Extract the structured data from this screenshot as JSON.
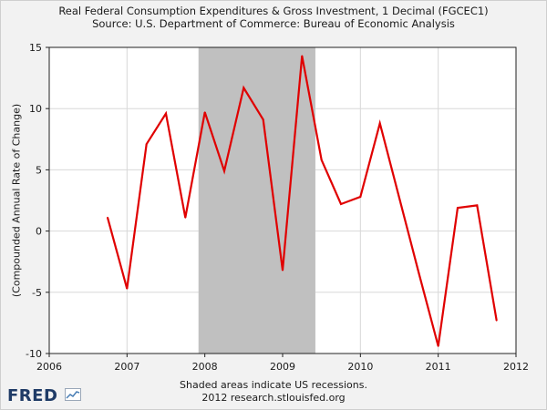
{
  "header": {
    "title": "Real Federal Consumption Expenditures & Gross Investment, 1 Decimal (FGCEC1)",
    "source": "Source: U.S. Department of Commerce: Bureau of Economic Analysis"
  },
  "footer": {
    "note": "Shaded areas indicate US recessions.",
    "credit": "2012 research.stlouisfed.org"
  },
  "logo": {
    "text": "FRED",
    "icon": "chart-line-icon"
  },
  "colors": {
    "line": "#e00000",
    "recession": "#c0c0c0",
    "plot_bg": "#ffffff",
    "grid": "#d8d8d8"
  },
  "chart_data": {
    "type": "line",
    "title": "Real Federal Consumption Expenditures & Gross Investment, 1 Decimal (FGCEC1)",
    "ylabel": "(Compounded Annual Rate of Change)",
    "xlim": [
      2006,
      2012
    ],
    "ylim": [
      -10,
      15
    ],
    "x_ticks": [
      "2006",
      "2007",
      "2008",
      "2009",
      "2010",
      "2011",
      "2012"
    ],
    "y_ticks": [
      "15",
      "10",
      "5",
      "0",
      "-5",
      "-10"
    ],
    "grid": true,
    "recessions": [
      {
        "start": 2007.92,
        "end": 2009.42
      }
    ],
    "series": [
      {
        "x": [
          2006.75,
          2007.0,
          2007.25,
          2007.5,
          2007.75,
          2008.0,
          2008.25,
          2008.5,
          2008.75,
          2009.0,
          2009.25,
          2009.5,
          2009.75,
          2010.0,
          2010.25,
          2010.5,
          2010.75,
          2011.0,
          2011.25,
          2011.5,
          2011.75
        ],
        "values": [
          1.1,
          -4.7,
          7.1,
          9.6,
          1.1,
          9.7,
          4.9,
          11.7,
          9.1,
          -3.2,
          14.3,
          5.8,
          2.2,
          2.8,
          8.8,
          2.7,
          -3.4,
          -9.4,
          1.9,
          2.1,
          -7.3
        ]
      }
    ]
  }
}
